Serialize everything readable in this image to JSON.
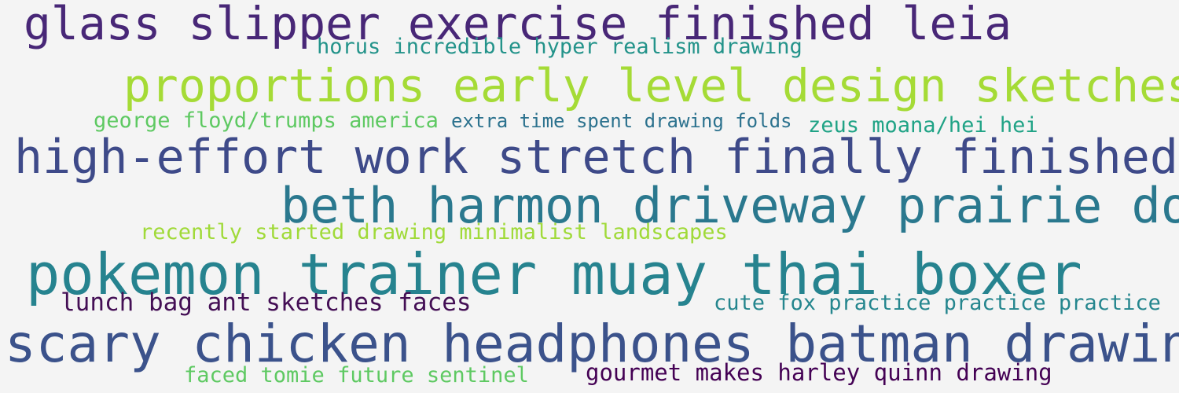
{
  "background": "#f4f4f4",
  "phrases": [
    {
      "text": "glass slipper exercise finished leia",
      "color": "#482777"
    },
    {
      "text": "horus incredible hyper realism drawing",
      "color": "#23938a"
    },
    {
      "text": "proportions early level design sketches",
      "color": "#a5db36"
    },
    {
      "text": "george floyd/trumps america",
      "color": "#5ec962"
    },
    {
      "text": "extra time spent drawing folds",
      "color": "#2c728e"
    },
    {
      "text": "zeus moana/hei hei",
      "color": "#20a386"
    },
    {
      "text": "high-effort work stretch finally finished",
      "color": "#3e4a89"
    },
    {
      "text": "beth harmon driveway prairie dog",
      "color": "#2a788e"
    },
    {
      "text": "recently started drawing minimalist landscapes",
      "color": "#a0da39"
    },
    {
      "text": "pokemon trainer muay thai boxer",
      "color": "#26838f"
    },
    {
      "text": "lunch bag ant sketches faces",
      "color": "#440f55"
    },
    {
      "text": "cute fox practice practice practice",
      "color": "#25868e"
    },
    {
      "text": "scary chicken headphones batman drawing",
      "color": "#3b528b"
    },
    {
      "text": "faced tomie future sentinel",
      "color": "#5ec962"
    },
    {
      "text": "gourmet makes harley quinn drawing",
      "color": "#440154"
    }
  ]
}
